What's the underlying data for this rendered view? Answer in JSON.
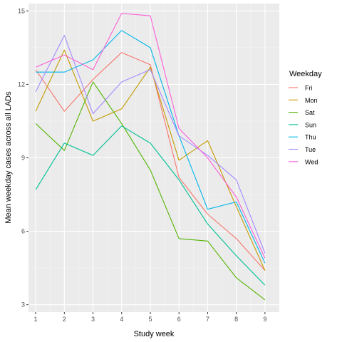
{
  "chart_data": {
    "type": "line",
    "xlabel": "Study week",
    "ylabel": "Mean weekday cases across all LADs",
    "x": [
      1,
      2,
      3,
      4,
      5,
      6,
      7,
      8,
      9
    ],
    "xlim": [
      0.75,
      9.5
    ],
    "ylim": [
      2.7,
      15.3
    ],
    "x_ticks": [
      1,
      2,
      3,
      4,
      5,
      6,
      7,
      8,
      9
    ],
    "y_ticks": [
      3,
      6,
      9,
      12,
      15
    ],
    "grid": true,
    "legend_title": "Weekday",
    "legend_position": "right",
    "series": [
      {
        "name": "Fri",
        "color": "#F8766D",
        "values": [
          12.6,
          10.9,
          12.2,
          13.3,
          12.8,
          8.2,
          6.7,
          5.7,
          4.4
        ]
      },
      {
        "name": "Mon",
        "color": "#C49A00",
        "values": [
          10.9,
          13.4,
          10.5,
          11.0,
          12.7,
          8.9,
          9.7,
          7.0,
          4.4
        ]
      },
      {
        "name": "Sat",
        "color": "#53B400",
        "values": [
          10.4,
          9.3,
          12.1,
          10.4,
          8.5,
          5.7,
          5.6,
          4.1,
          3.2
        ]
      },
      {
        "name": "Sun",
        "color": "#00C094",
        "values": [
          7.7,
          9.6,
          9.1,
          10.3,
          9.6,
          8.1,
          6.3,
          5.0,
          3.8
        ]
      },
      {
        "name": "Thu",
        "color": "#00B6EB",
        "values": [
          12.5,
          12.5,
          13.0,
          14.2,
          13.5,
          9.9,
          6.9,
          7.2,
          4.7
        ]
      },
      {
        "name": "Tue",
        "color": "#A58AFF",
        "values": [
          11.7,
          14.0,
          10.8,
          12.1,
          12.6,
          9.9,
          9.1,
          8.1,
          5.1
        ]
      },
      {
        "name": "Wed",
        "color": "#FB61D7",
        "values": [
          12.7,
          13.2,
          12.6,
          14.9,
          14.8,
          10.2,
          9.0,
          7.4,
          4.9
        ]
      }
    ]
  }
}
